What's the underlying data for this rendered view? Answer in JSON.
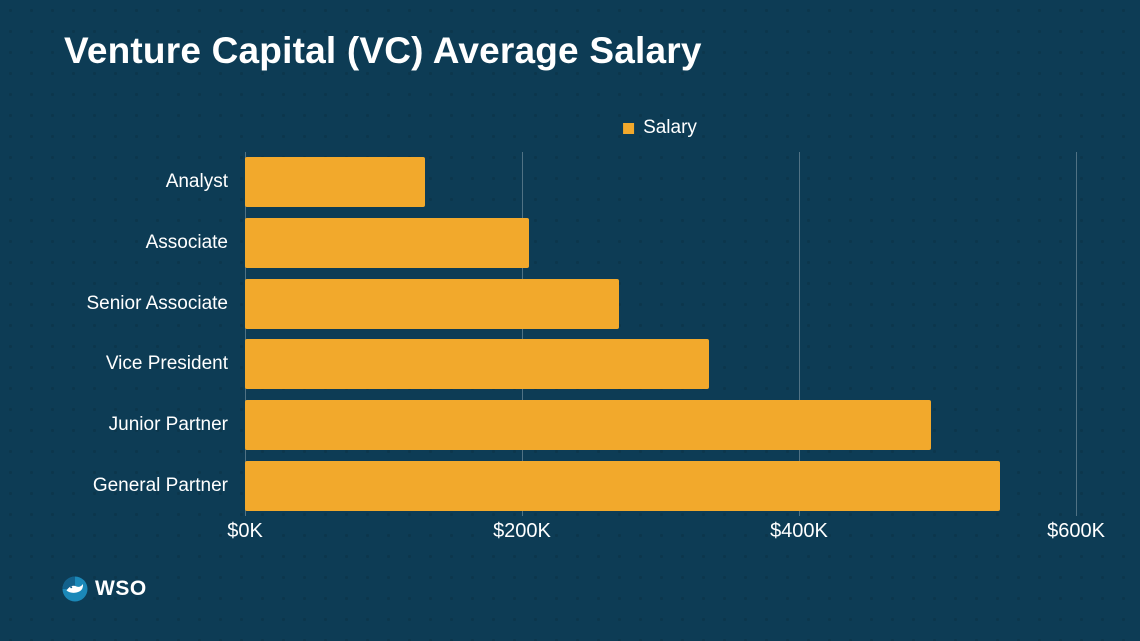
{
  "title": "Venture Capital (VC) Average Salary",
  "legend": {
    "label": "Salary",
    "marker_color": "#F2A92C"
  },
  "colors": {
    "background": "#0D3C55",
    "bar": "#F2A92C",
    "text": "#FFFFFF",
    "grid": "rgba(255,255,255,0.28)"
  },
  "footer": {
    "brand": "WSO",
    "logo": "wso-bird-circle-icon"
  },
  "chart_data": {
    "type": "bar",
    "orientation": "horizontal",
    "title": "Venture Capital (VC) Average Salary",
    "series_name": "Salary",
    "categories": [
      "Analyst",
      "Associate",
      "Senior Associate",
      "Vice President",
      "Junior Partner",
      "General Partner"
    ],
    "values": [
      130,
      205,
      270,
      335,
      495,
      545
    ],
    "value_unit": "$K",
    "xlim": [
      0,
      600
    ],
    "x_ticks": [
      0,
      200,
      400,
      600
    ],
    "x_tick_labels": [
      "$0K",
      "$200K",
      "$400K",
      "$600K"
    ],
    "grid": true,
    "legend_position": "top-center"
  }
}
